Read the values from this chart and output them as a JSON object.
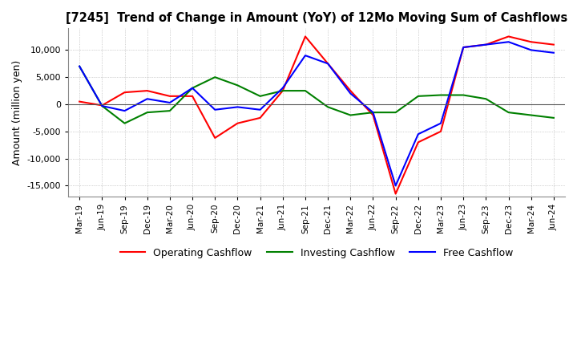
{
  "title": "[7245]  Trend of Change in Amount (YoY) of 12Mo Moving Sum of Cashflows",
  "ylabel": "Amount (million yen)",
  "ylim": [
    -17000,
    14000
  ],
  "yticks": [
    -15000,
    -10000,
    -5000,
    0,
    5000,
    10000
  ],
  "x_labels": [
    "Mar-19",
    "Jun-19",
    "Sep-19",
    "Dec-19",
    "Mar-20",
    "Jun-20",
    "Sep-20",
    "Dec-20",
    "Mar-21",
    "Jun-21",
    "Sep-21",
    "Dec-21",
    "Mar-22",
    "Jun-22",
    "Sep-22",
    "Dec-22",
    "Mar-23",
    "Jun-23",
    "Sep-23",
    "Dec-23",
    "Mar-24",
    "Jun-24"
  ],
  "operating": [
    500,
    -200,
    2200,
    2500,
    1500,
    1500,
    -6200,
    -3500,
    -2500,
    2500,
    12500,
    7500,
    2500,
    -2000,
    -16500,
    -7000,
    -5000,
    10500,
    11000,
    12500,
    11500,
    11000
  ],
  "investing": [
    7000,
    -300,
    -3500,
    -1500,
    -1200,
    3000,
    5000,
    3500,
    1500,
    2500,
    2500,
    -500,
    -2000,
    -1500,
    -1500,
    1500,
    1700,
    1700,
    1000,
    -1500,
    -2000,
    -2500
  ],
  "free": [
    7000,
    -300,
    -1200,
    1000,
    300,
    3000,
    -1000,
    -500,
    -1000,
    3000,
    9000,
    7500,
    2000,
    -1500,
    -15000,
    -5500,
    -3500,
    10500,
    11000,
    11500,
    10000,
    9500
  ],
  "operating_color": "#ff0000",
  "investing_color": "#008000",
  "free_color": "#0000ff",
  "background_color": "#ffffff",
  "grid_color": "#aaaaaa"
}
